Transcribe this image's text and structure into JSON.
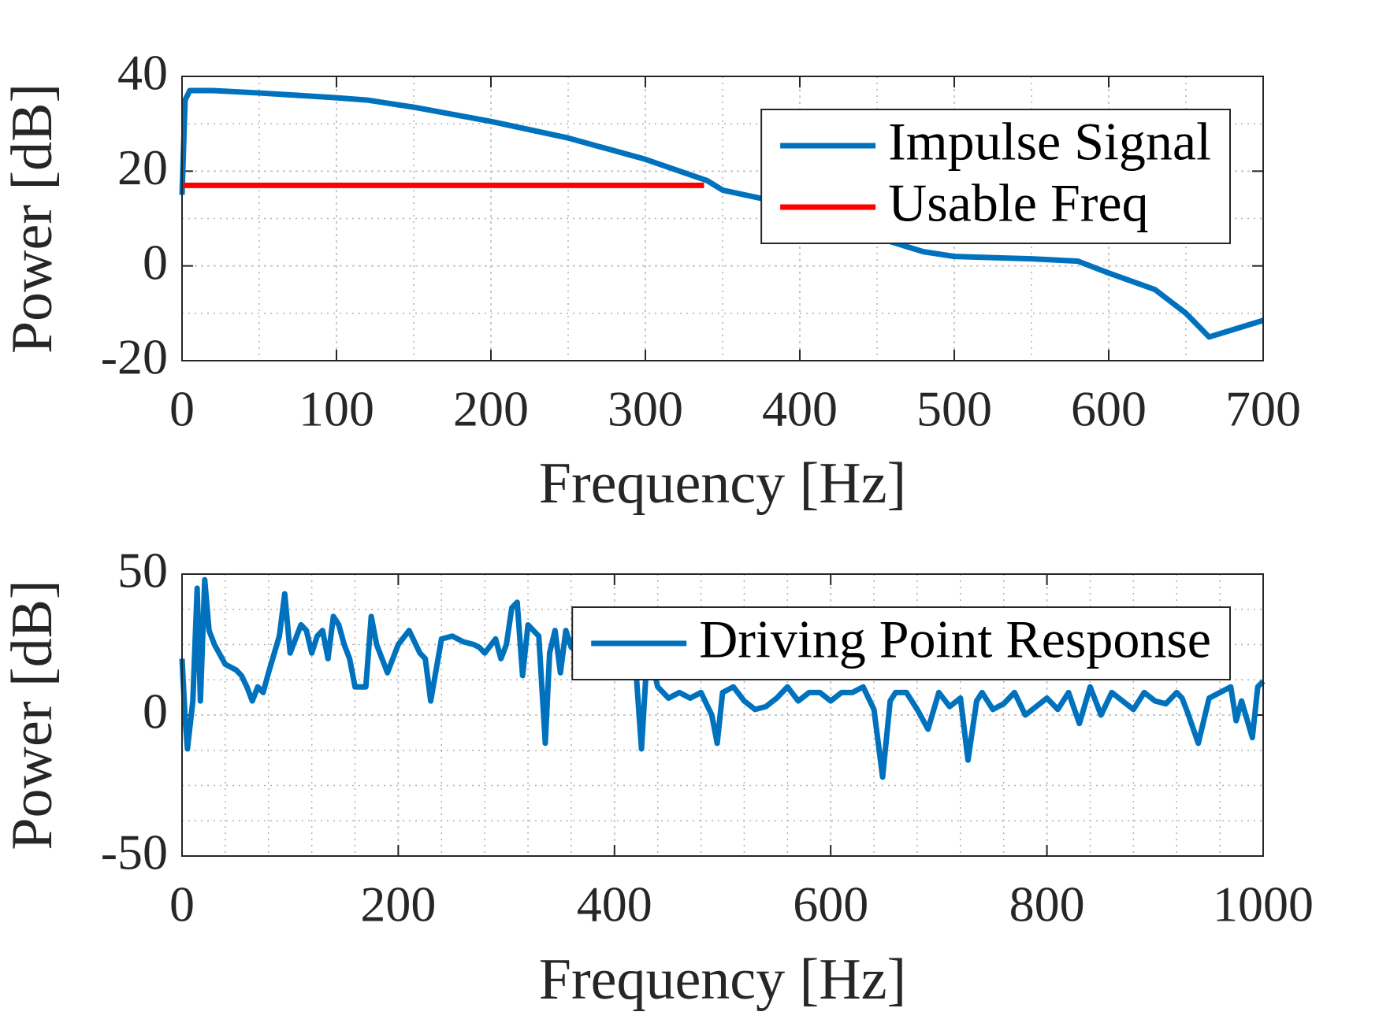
{
  "chart_data": [
    {
      "type": "line",
      "xlabel": "Frequency [Hz]",
      "ylabel": "Power [dB]",
      "xlim": [
        0,
        700
      ],
      "ylim": [
        -20,
        40
      ],
      "xticks": [
        0,
        100,
        200,
        300,
        400,
        500,
        600,
        700
      ],
      "yticks": [
        -20,
        0,
        20,
        40
      ],
      "grid": true,
      "minor_divisions": {
        "x": 2,
        "y": 2
      },
      "legend": "northeast",
      "series": [
        {
          "name": "Impulse Signal",
          "color": "#0072bd",
          "x": [
            0,
            2,
            5,
            20,
            50,
            100,
            120,
            150,
            200,
            250,
            300,
            340,
            350,
            400,
            450,
            480,
            500,
            550,
            580,
            600,
            630,
            650,
            665,
            675,
            690,
            700
          ],
          "values": [
            15,
            35,
            37,
            37,
            36.5,
            35.5,
            35,
            33.5,
            30.5,
            27,
            22.5,
            18,
            16,
            12.5,
            6,
            3,
            2,
            1.5,
            1,
            -1.5,
            -5,
            -10,
            -15,
            -14,
            -12.5,
            -11.5
          ]
        },
        {
          "name": "Usable Freq",
          "color": "#ff0000",
          "x": [
            0,
            338
          ],
          "values": [
            17,
            17
          ]
        }
      ]
    },
    {
      "type": "line",
      "xlabel": "Frequency [Hz]",
      "ylabel": "Power [dB]",
      "xlim": [
        0,
        1000
      ],
      "ylim": [
        -50,
        50
      ],
      "xticks": [
        0,
        200,
        400,
        600,
        800,
        1000
      ],
      "yticks": [
        -50,
        0,
        50
      ],
      "grid": true,
      "minor_divisions": {
        "x": 5,
        "y": 4
      },
      "legend": "northeast",
      "series": [
        {
          "name": "Driving Point Response",
          "color": "#0072bd",
          "x": [
            0,
            3,
            5,
            10,
            14,
            17,
            21,
            25,
            30,
            40,
            50,
            55,
            60,
            65,
            70,
            75,
            80,
            90,
            95,
            100,
            110,
            115,
            120,
            125,
            130,
            135,
            140,
            145,
            150,
            155,
            160,
            170,
            175,
            180,
            190,
            200,
            210,
            220,
            225,
            230,
            240,
            250,
            260,
            270,
            275,
            280,
            290,
            295,
            300,
            305,
            310,
            315,
            320,
            330,
            336,
            340,
            345,
            350,
            355,
            360,
            370,
            375,
            380,
            385,
            390,
            395,
            400,
            410,
            420,
            425,
            430,
            435,
            440,
            450,
            460,
            470,
            480,
            490,
            495,
            500,
            510,
            520,
            530,
            540,
            550,
            560,
            570,
            580,
            590,
            600,
            610,
            620,
            630,
            640,
            648,
            655,
            660,
            670,
            680,
            690,
            700,
            710,
            720,
            727,
            735,
            740,
            750,
            760,
            770,
            780,
            790,
            800,
            810,
            820,
            830,
            840,
            850,
            860,
            870,
            880,
            890,
            900,
            910,
            920,
            925,
            930,
            940,
            950,
            960,
            970,
            975,
            980,
            990,
            995,
            1000
          ],
          "values": [
            20,
            -2,
            -12,
            5,
            45,
            5,
            48,
            30,
            25,
            18,
            16,
            14,
            10,
            5,
            10,
            8,
            15,
            28,
            43,
            22,
            32,
            30,
            22,
            28,
            30,
            20,
            35,
            32,
            25,
            20,
            10,
            10,
            35,
            25,
            15,
            25,
            30,
            22,
            20,
            5,
            27,
            28,
            26,
            25,
            24,
            22,
            27,
            20,
            25,
            38,
            40,
            14,
            32,
            28,
            -10,
            22,
            30,
            15,
            30,
            24,
            30,
            20,
            25,
            15,
            22,
            20,
            18,
            18,
            15,
            -12,
            20,
            18,
            10,
            6,
            8,
            6,
            8,
            0,
            -10,
            8,
            10,
            5,
            2,
            3,
            6,
            10,
            5,
            8,
            8,
            5,
            8,
            8,
            10,
            2,
            -22,
            5,
            8,
            8,
            2,
            -5,
            8,
            3,
            6,
            -16,
            5,
            8,
            2,
            4,
            8,
            0,
            3,
            6,
            2,
            8,
            -3,
            10,
            0,
            8,
            5,
            2,
            8,
            5,
            4,
            8,
            6,
            1,
            -10,
            6,
            8,
            10,
            -2,
            5,
            -8,
            10,
            12
          ]
        }
      ]
    }
  ]
}
